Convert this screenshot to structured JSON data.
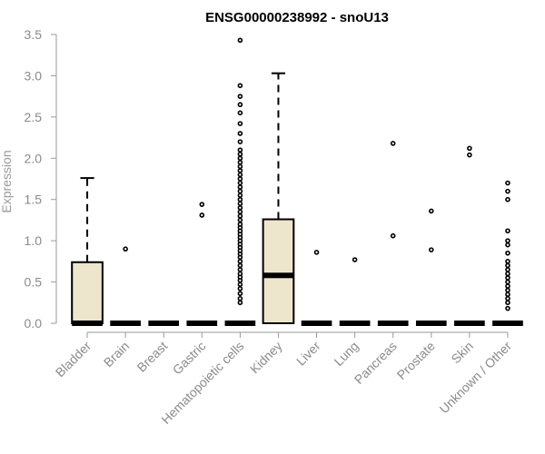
{
  "chart_data": {
    "type": "box",
    "title": "ENSG00000238992 - snoU13",
    "ylabel": "Expression",
    "xlabel": "",
    "ylim": [
      0,
      3.5
    ],
    "y_ticks": [
      "0.0",
      "0.5",
      "1.0",
      "1.5",
      "2.0",
      "2.5",
      "3.0",
      "3.5"
    ],
    "categories": [
      "Bladder",
      "Brain",
      "Breast",
      "Gastric",
      "Hematopoietic cells",
      "Kidney",
      "Liver",
      "Lung",
      "Pancreas",
      "Prostate",
      "Skin",
      "Unknown / Other"
    ],
    "box_color": "#ede6cc",
    "boxes": [
      {
        "name": "Bladder",
        "min": 0,
        "q1": 0,
        "median": 0,
        "q3": 0.74,
        "max": 1.76,
        "outliers": []
      },
      {
        "name": "Brain",
        "min": 0,
        "q1": 0,
        "median": 0,
        "q3": 0,
        "max": 0,
        "outliers": [
          0.9
        ]
      },
      {
        "name": "Breast",
        "min": 0,
        "q1": 0,
        "median": 0,
        "q3": 0,
        "max": 0,
        "outliers": []
      },
      {
        "name": "Gastric",
        "min": 0,
        "q1": 0,
        "median": 0,
        "q3": 0,
        "max": 0,
        "outliers": [
          1.31,
          1.44
        ]
      },
      {
        "name": "Hematopoietic cells",
        "min": 0,
        "q1": 0,
        "median": 0,
        "q3": 0,
        "max": 0,
        "outliers": [
          0.25,
          0.3,
          0.36,
          0.42,
          0.47,
          0.52,
          0.56,
          0.6,
          0.65,
          0.7,
          0.75,
          0.8,
          0.84,
          0.88,
          0.92,
          0.96,
          1.0,
          1.04,
          1.08,
          1.12,
          1.16,
          1.2,
          1.25,
          1.3,
          1.35,
          1.4,
          1.45,
          1.5,
          1.55,
          1.6,
          1.65,
          1.7,
          1.75,
          1.8,
          1.85,
          1.9,
          1.95,
          2.0,
          2.05,
          2.1,
          2.2,
          2.3,
          2.42,
          2.55,
          2.65,
          2.75,
          2.88,
          3.43
        ]
      },
      {
        "name": "Kidney",
        "min": 0,
        "q1": 0,
        "median": 0.58,
        "q3": 1.26,
        "max": 3.03,
        "outliers": []
      },
      {
        "name": "Liver",
        "min": 0,
        "q1": 0,
        "median": 0,
        "q3": 0,
        "max": 0,
        "outliers": [
          0.86
        ]
      },
      {
        "name": "Lung",
        "min": 0,
        "q1": 0,
        "median": 0,
        "q3": 0,
        "max": 0,
        "outliers": [
          0.77
        ]
      },
      {
        "name": "Pancreas",
        "min": 0,
        "q1": 0,
        "median": 0,
        "q3": 0,
        "max": 0,
        "outliers": [
          1.06,
          2.18
        ]
      },
      {
        "name": "Prostate",
        "min": 0,
        "q1": 0,
        "median": 0,
        "q3": 0,
        "max": 0,
        "outliers": [
          0.89,
          1.36
        ]
      },
      {
        "name": "Skin",
        "min": 0,
        "q1": 0,
        "median": 0,
        "q3": 0,
        "max": 0,
        "outliers": [
          2.04,
          2.12
        ]
      },
      {
        "name": "Unknown / Other",
        "min": 0,
        "q1": 0,
        "median": 0,
        "q3": 0,
        "max": 0,
        "outliers": [
          0.18,
          0.25,
          0.3,
          0.35,
          0.4,
          0.45,
          0.5,
          0.55,
          0.6,
          0.65,
          0.7,
          0.75,
          0.85,
          0.95,
          1.0,
          1.12,
          1.5,
          1.6,
          1.7
        ]
      }
    ]
  }
}
